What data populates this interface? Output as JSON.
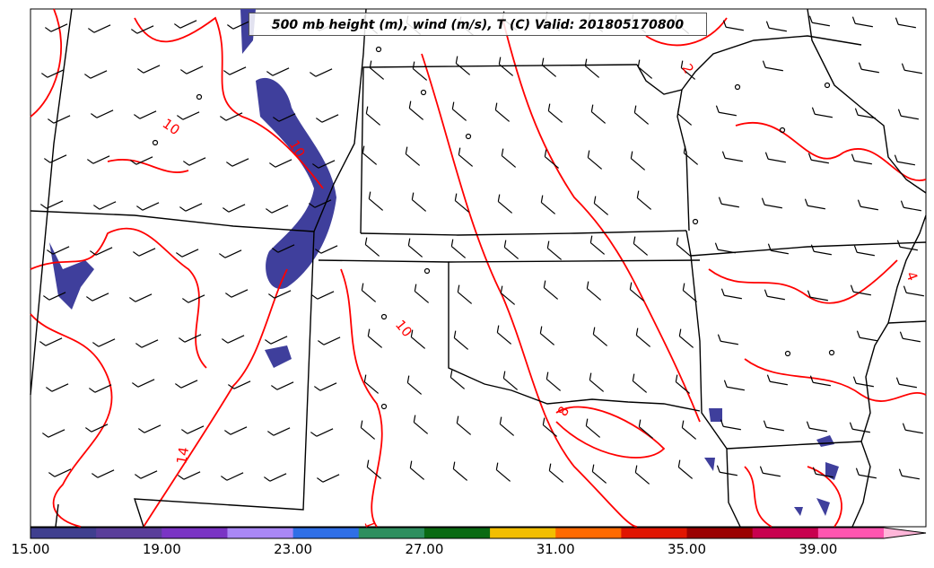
{
  "title": "500 mb height (m), wind (m/s), T (C) Valid: 201805170800",
  "contour_labels": [
    "10",
    "10",
    "10",
    "8",
    "14",
    "1",
    "2",
    "4"
  ],
  "colorbar": {
    "colors": [
      "#3f3f8f",
      "#5a3e9a",
      "#7a34c4",
      "#a987f5",
      "#2f6fe6",
      "#2e8f5f",
      "#0a6a12",
      "#f2be00",
      "#ff6a00",
      "#e01500",
      "#9a0000",
      "#c8004f",
      "#ff55b0",
      "#ffb6d9"
    ],
    "tick_labels": [
      "15.00",
      "19.00",
      "23.00",
      "27.00",
      "31.00",
      "35.00",
      "39.00"
    ]
  },
  "colors": {
    "contour": "#ff0000",
    "fill": "#3f3f9c",
    "boundary": "#000000"
  }
}
